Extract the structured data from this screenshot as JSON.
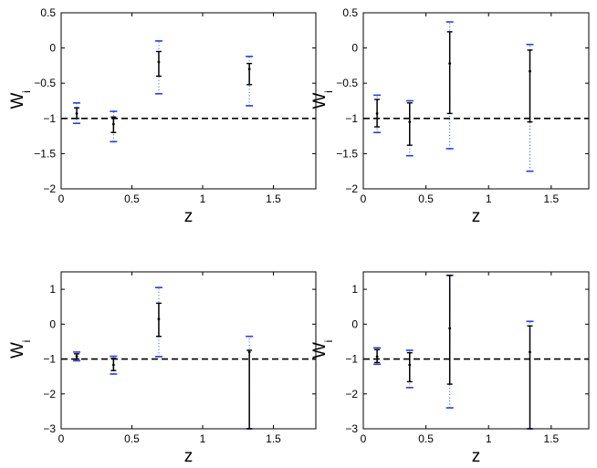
{
  "figure": {
    "colors": {
      "inner": "#000000",
      "outer": "#1f3ff0",
      "reference": "#000000"
    }
  },
  "chart_data": [
    {
      "type": "scatter",
      "xlabel": "z",
      "ylabel": "W",
      "ylabel_sub": "i",
      "xlim": [
        0,
        1.8
      ],
      "ylim": [
        -2,
        0.5
      ],
      "xticks": [
        0,
        0.5,
        1,
        1.5
      ],
      "yticks": [
        -2,
        -1.5,
        -1,
        -0.5,
        0,
        0.5
      ],
      "xtick_labels": [
        "0",
        "0.5",
        "1",
        "1.5"
      ],
      "ytick_labels": [
        "−2",
        "−1.5",
        "−1",
        "−0.5",
        "0",
        "0.5"
      ],
      "reference_line": -1,
      "points": [
        {
          "x": 0.11,
          "y": -0.93,
          "inner": [
            -1.0,
            -0.85
          ],
          "outer": [
            -1.07,
            -0.78
          ]
        },
        {
          "x": 0.37,
          "y": -1.08,
          "inner": [
            -1.2,
            -0.98
          ],
          "outer": [
            -1.33,
            -0.9
          ]
        },
        {
          "x": 0.69,
          "y": -0.2,
          "inner": [
            -0.4,
            -0.05
          ],
          "outer": [
            -0.65,
            0.1
          ]
        },
        {
          "x": 1.33,
          "y": -0.3,
          "inner": [
            -0.52,
            -0.22
          ],
          "outer": [
            -0.82,
            -0.12
          ]
        }
      ]
    },
    {
      "type": "scatter",
      "xlabel": "z",
      "ylabel": "W",
      "ylabel_sub": "i",
      "xlim": [
        0,
        1.8
      ],
      "ylim": [
        -2,
        0.5
      ],
      "xticks": [
        0,
        0.5,
        1,
        1.5
      ],
      "yticks": [
        -2,
        -1.5,
        -1,
        -0.5,
        0,
        0.5
      ],
      "xtick_labels": [
        "0",
        "0.5",
        "1",
        "1.5"
      ],
      "ytick_labels": [
        "−2",
        "−1.5",
        "−1",
        "−0.5",
        "0",
        "0.5"
      ],
      "reference_line": -1,
      "points": [
        {
          "x": 0.11,
          "y": -0.93,
          "inner": [
            -1.12,
            -0.73
          ],
          "outer": [
            -1.2,
            -0.67
          ]
        },
        {
          "x": 0.37,
          "y": -1.05,
          "inner": [
            -1.38,
            -0.78
          ],
          "outer": [
            -1.53,
            -0.75
          ]
        },
        {
          "x": 0.69,
          "y": -0.22,
          "inner": [
            -0.93,
            0.23
          ],
          "outer": [
            -1.43,
            0.37
          ]
        },
        {
          "x": 1.33,
          "y": -0.33,
          "inner": [
            -1.05,
            -0.03
          ],
          "outer": [
            -1.75,
            0.05
          ]
        }
      ]
    },
    {
      "type": "scatter",
      "xlabel": "z",
      "ylabel": "W",
      "ylabel_sub": "i",
      "xlim": [
        0,
        1.8
      ],
      "ylim": [
        -3,
        1.5
      ],
      "xticks": [
        0,
        0.5,
        1,
        1.5
      ],
      "yticks": [
        -3,
        -2,
        -1,
        0,
        1
      ],
      "xtick_labels": [
        "0",
        "0.5",
        "1",
        "1.5"
      ],
      "ytick_labels": [
        "−3",
        "−2",
        "−1",
        "0",
        "1"
      ],
      "reference_line": -1,
      "points": [
        {
          "x": 0.11,
          "y": -0.92,
          "inner": [
            -1.0,
            -0.85
          ],
          "outer": [
            -1.05,
            -0.8
          ]
        },
        {
          "x": 0.37,
          "y": -1.17,
          "inner": [
            -1.33,
            -0.98
          ],
          "outer": [
            -1.43,
            -0.92
          ]
        },
        {
          "x": 0.69,
          "y": 0.15,
          "inner": [
            -0.35,
            0.6
          ],
          "outer": [
            -0.93,
            1.05
          ]
        },
        {
          "x": 1.33,
          "y": -0.8,
          "inner": [
            -3.0,
            -0.75
          ],
          "outer": [
            -3.0,
            -0.35
          ]
        }
      ]
    },
    {
      "type": "scatter",
      "xlabel": "z",
      "ylabel": "W",
      "ylabel_sub": "i",
      "xlim": [
        0,
        1.8
      ],
      "ylim": [
        -3,
        1.5
      ],
      "xticks": [
        0,
        0.5,
        1,
        1.5
      ],
      "yticks": [
        -3,
        -2,
        -1,
        0,
        1
      ],
      "xtick_labels": [
        "0",
        "0.5",
        "1",
        "1.5"
      ],
      "ytick_labels": [
        "−3",
        "−2",
        "−1",
        "0",
        "1"
      ],
      "reference_line": -1,
      "points": [
        {
          "x": 0.11,
          "y": -0.93,
          "inner": [
            -1.1,
            -0.73
          ],
          "outer": [
            -1.15,
            -0.68
          ]
        },
        {
          "x": 0.37,
          "y": -1.17,
          "inner": [
            -1.65,
            -0.82
          ],
          "outer": [
            -1.82,
            -0.75
          ]
        },
        {
          "x": 0.69,
          "y": -0.12,
          "inner": [
            -1.72,
            1.4
          ],
          "outer": [
            -2.4,
            1.4
          ]
        },
        {
          "x": 1.33,
          "y": -0.8,
          "inner": [
            -3.0,
            -0.05
          ],
          "outer": [
            -3.0,
            0.08
          ]
        }
      ]
    }
  ]
}
